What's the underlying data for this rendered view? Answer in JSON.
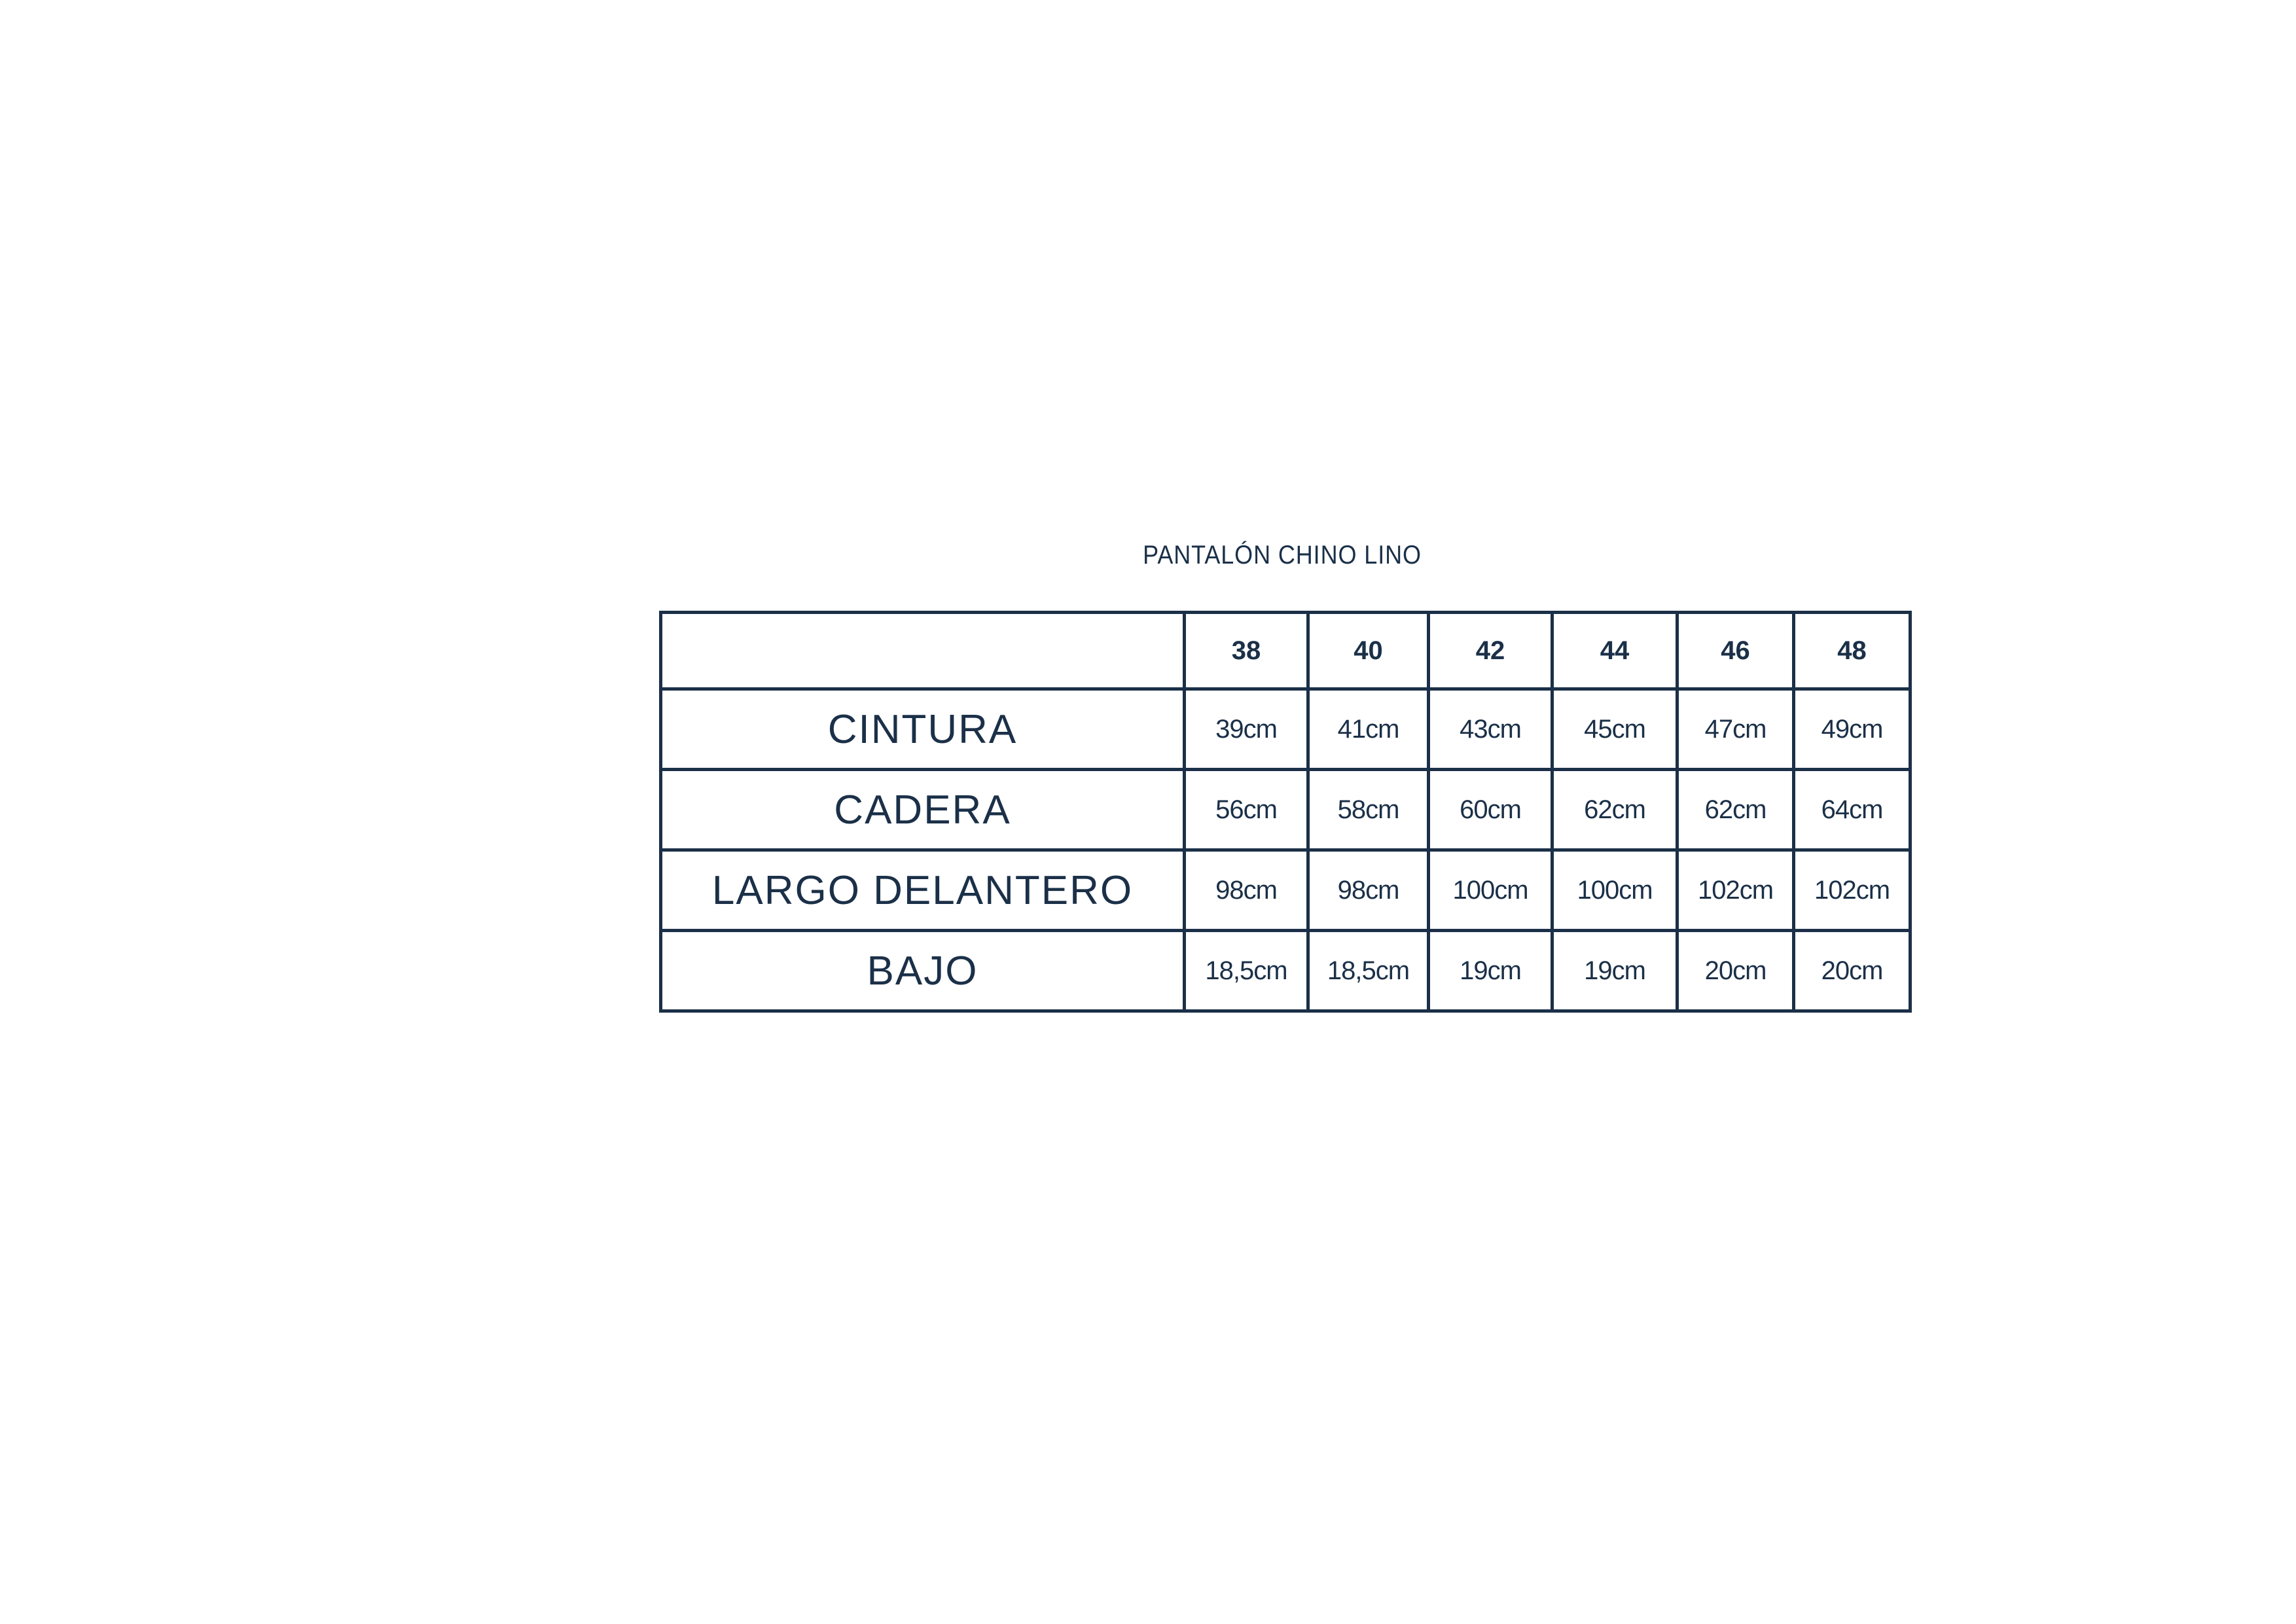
{
  "title": "PANTALÓN CHINO LINO",
  "table": {
    "sizes": [
      "38",
      "40",
      "42",
      "44",
      "46",
      "48"
    ],
    "rows": [
      {
        "label": "CINTURA",
        "values": [
          "39cm",
          "41cm",
          "43cm",
          "45cm",
          "47cm",
          "49cm"
        ]
      },
      {
        "label": "CADERA",
        "values": [
          "56cm",
          "58cm",
          "60cm",
          "62cm",
          "62cm",
          "64cm"
        ]
      },
      {
        "label": "LARGO DELANTERO",
        "values": [
          "98cm",
          "98cm",
          "100cm",
          "100cm",
          "102cm",
          "102cm"
        ]
      },
      {
        "label": "BAJO",
        "values": [
          "18,5cm",
          "18,5cm",
          "19cm",
          "19cm",
          "20cm",
          "20cm"
        ]
      }
    ]
  },
  "colors": {
    "ink": "#1b3048"
  }
}
